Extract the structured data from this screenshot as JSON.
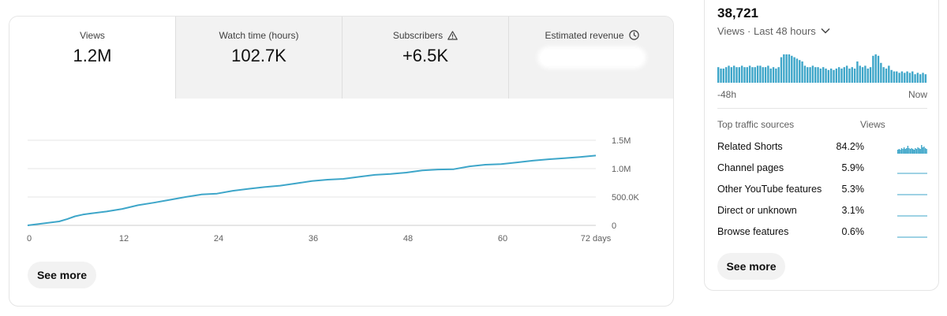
{
  "tabs": [
    {
      "label": "Views",
      "value": "1.2M"
    },
    {
      "label": "Watch time (hours)",
      "value": "102.7K"
    },
    {
      "label": "Subscribers",
      "value": "+6.5K"
    },
    {
      "label": "Estimated revenue",
      "value": ""
    }
  ],
  "see_more_label": "See more",
  "colors": {
    "accent": "#3ea6c9",
    "grid": "#e5e5e5",
    "tab_bg": "#f2f2f2",
    "text_secondary": "#606060"
  },
  "icons": {
    "subscribers": "warning-triangle-icon",
    "revenue": "clock-icon",
    "realtime": "chevron-down-icon"
  },
  "chart_data": {
    "type": "line",
    "title": "",
    "xlabel": "",
    "ylabel": "",
    "x_ticks": [
      "0",
      "12",
      "24",
      "36",
      "48",
      "60",
      "72 days"
    ],
    "y_ticks": [
      "0",
      "500.0K",
      "1.0M",
      "1.5M"
    ],
    "xlim": [
      0,
      72
    ],
    "ylim": [
      0,
      1500000
    ],
    "grid": true,
    "series": [
      {
        "x": [
          0,
          2,
          4,
          5,
          6,
          7,
          8,
          10,
          12,
          14,
          16,
          18,
          20,
          22,
          24,
          26,
          28,
          30,
          32,
          34,
          36,
          38,
          40,
          42,
          44,
          46,
          48,
          50,
          52,
          54,
          56,
          58,
          60,
          62,
          64,
          66,
          68,
          70,
          72
        ],
        "values": [
          0,
          35000,
          70000,
          110000,
          160000,
          190000,
          210000,
          245000,
          290000,
          355000,
          400000,
          450000,
          500000,
          545000,
          560000,
          610000,
          645000,
          675000,
          700000,
          740000,
          780000,
          805000,
          820000,
          855000,
          890000,
          905000,
          930000,
          970000,
          985000,
          990000,
          1040000,
          1070000,
          1080000,
          1110000,
          1140000,
          1165000,
          1185000,
          1205000,
          1230000
        ]
      }
    ]
  },
  "realtime": {
    "count": "38,721",
    "subtitle": "Views · Last 48 hours",
    "axis_start": "-48h",
    "axis_end": "Now",
    "bar_levels": [
      0.55,
      0.5,
      0.5,
      0.55,
      0.6,
      0.55,
      0.6,
      0.55,
      0.55,
      0.6,
      0.55,
      0.55,
      0.6,
      0.55,
      0.55,
      0.6,
      0.6,
      0.55,
      0.55,
      0.6,
      0.5,
      0.55,
      0.5,
      0.55,
      0.9,
      1.0,
      1.0,
      1.0,
      0.95,
      0.9,
      0.85,
      0.8,
      0.75,
      0.6,
      0.55,
      0.55,
      0.6,
      0.55,
      0.55,
      0.5,
      0.55,
      0.5,
      0.45,
      0.5,
      0.45,
      0.5,
      0.55,
      0.5,
      0.55,
      0.6,
      0.5,
      0.55,
      0.5,
      0.75,
      0.6,
      0.55,
      0.6,
      0.5,
      0.55,
      0.95,
      1.0,
      0.95,
      0.7,
      0.55,
      0.5,
      0.6,
      0.45,
      0.4,
      0.4,
      0.35,
      0.4,
      0.35,
      0.4,
      0.35,
      0.4,
      0.3,
      0.35,
      0.3,
      0.35,
      0.3
    ]
  },
  "traffic": {
    "header_source": "Top traffic sources",
    "header_views": "Views",
    "rows": [
      {
        "source": "Related Shorts",
        "percent": "84.2%",
        "spark": "bars"
      },
      {
        "source": "Channel pages",
        "percent": "5.9%",
        "spark": "flat"
      },
      {
        "source": "Other YouTube features",
        "percent": "5.3%",
        "spark": "flat"
      },
      {
        "source": "Direct or unknown",
        "percent": "3.1%",
        "spark": "flat"
      },
      {
        "source": "Browse features",
        "percent": "0.6%",
        "spark": "flat"
      }
    ]
  }
}
